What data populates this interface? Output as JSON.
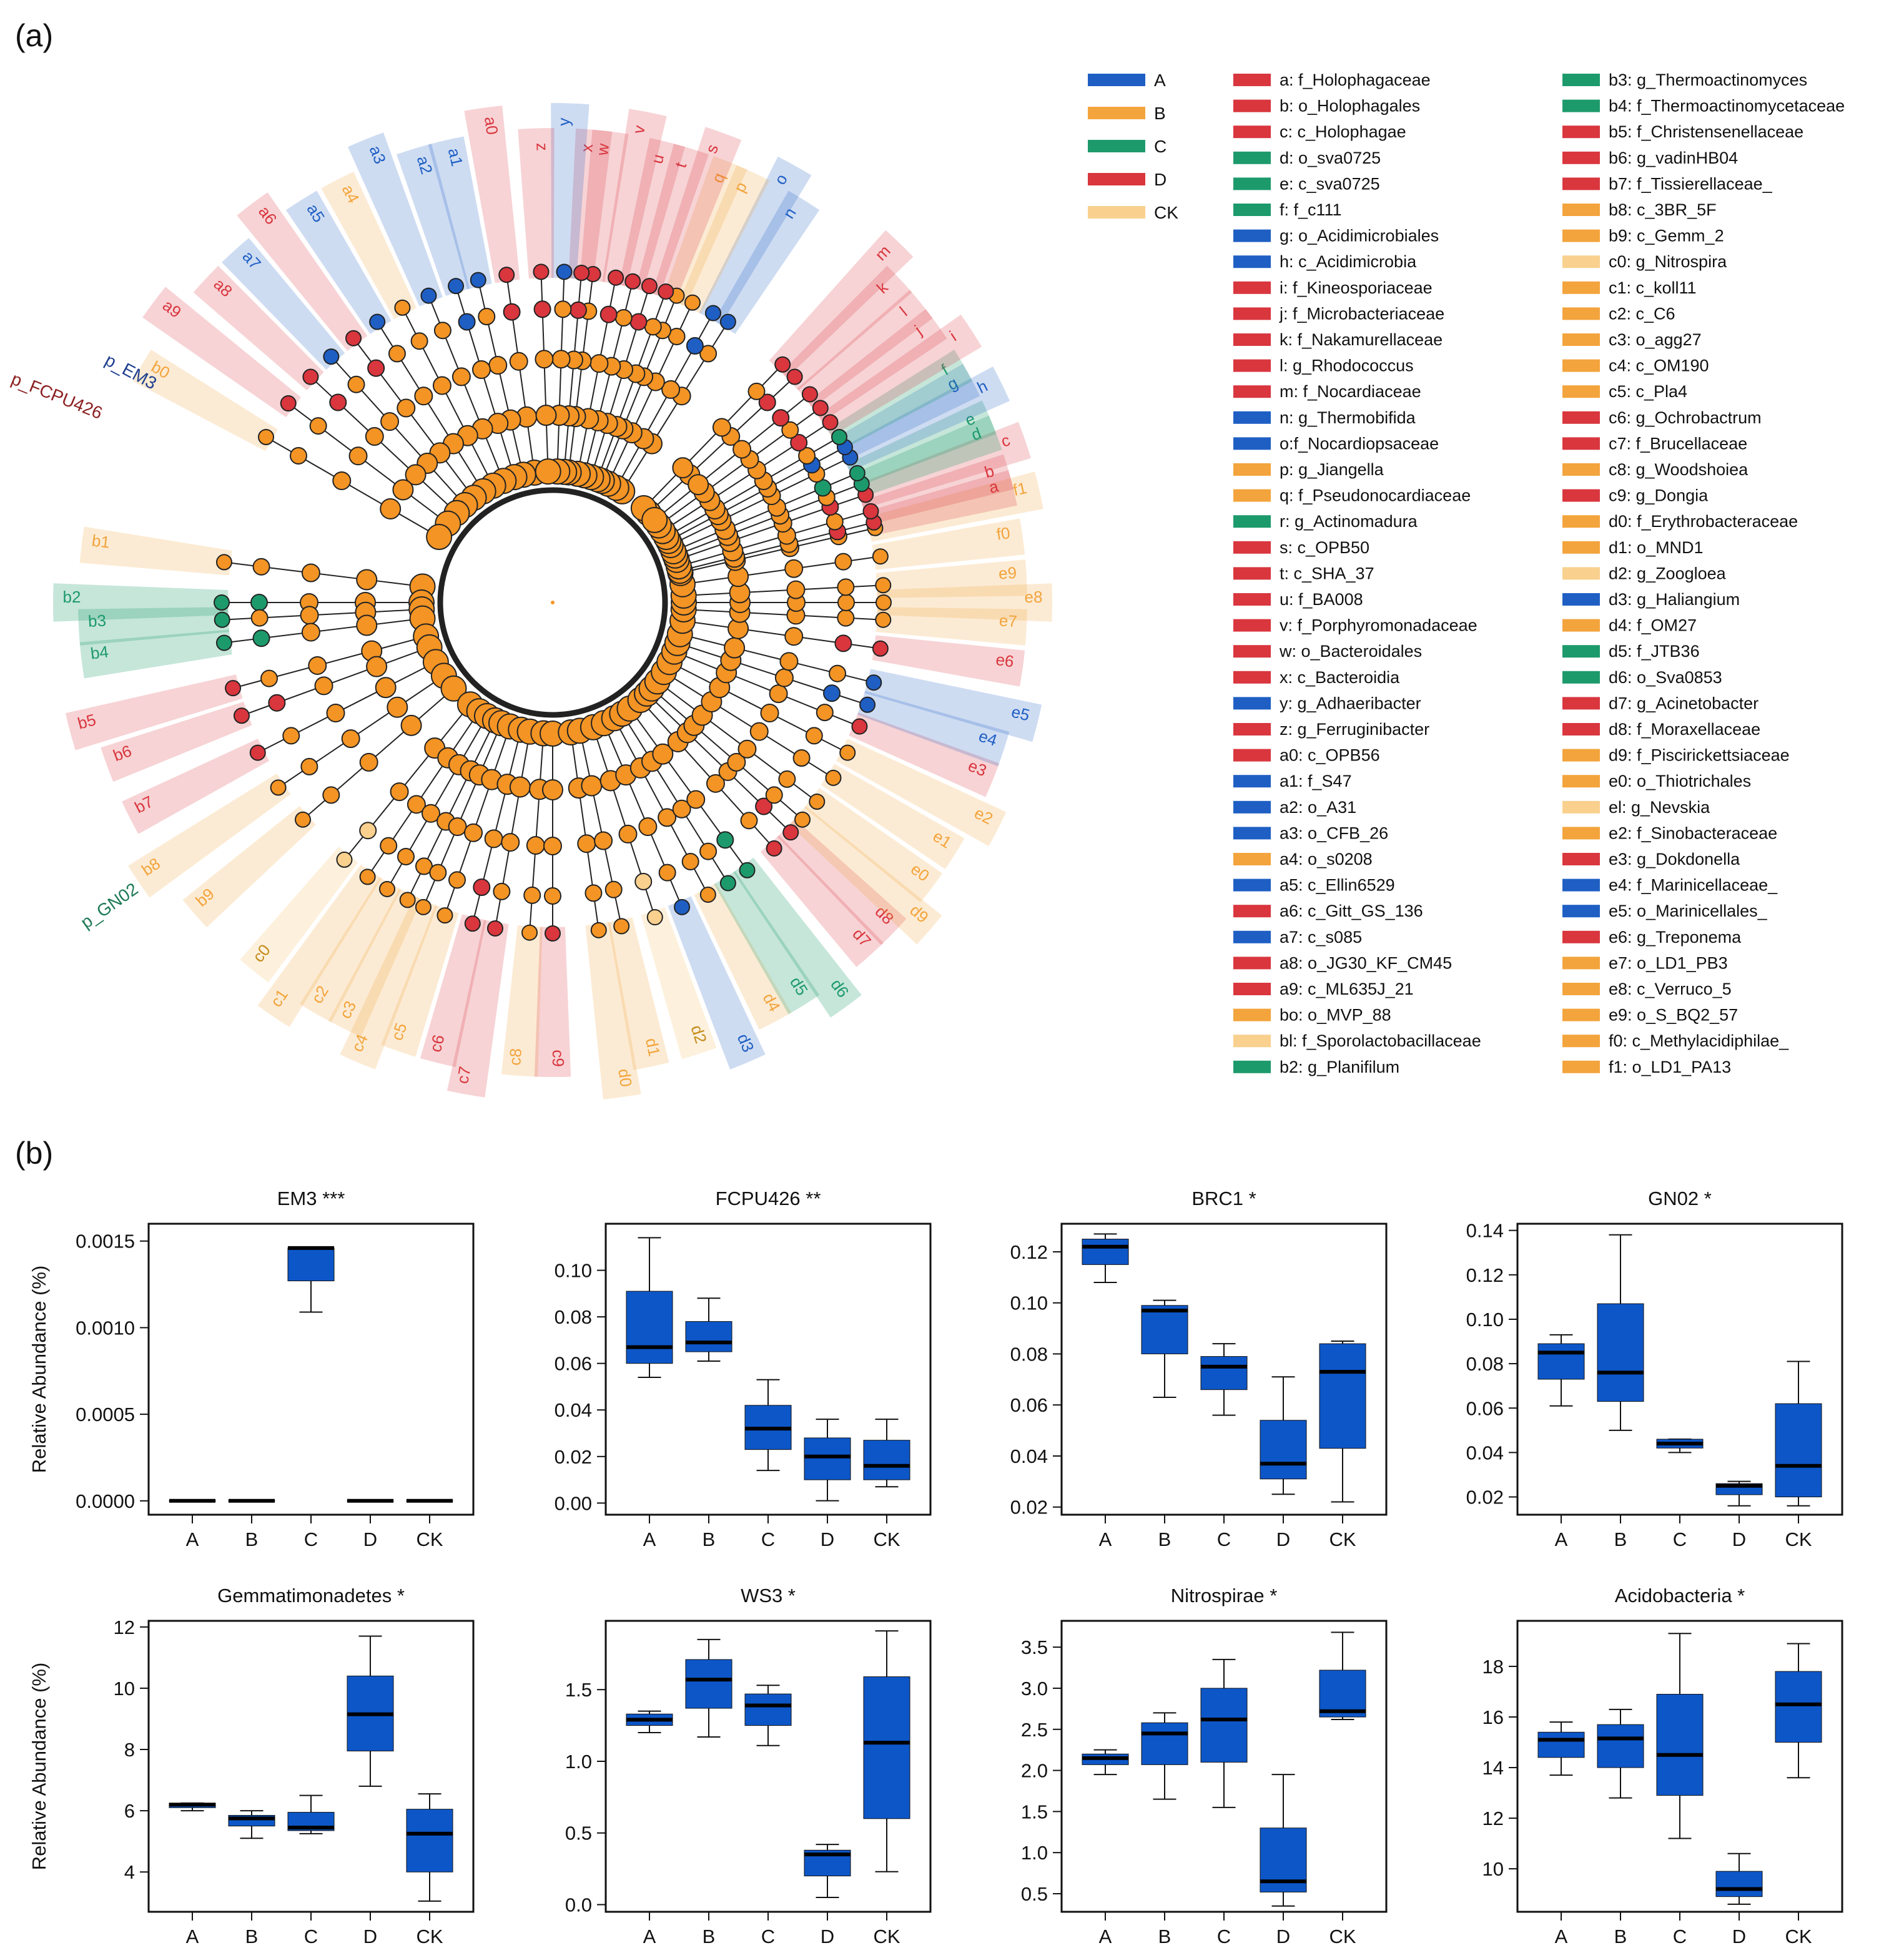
{
  "panel_a_label": "(a)",
  "panel_b_label": "(b)",
  "colors": {
    "A": "#1f5fc4",
    "B": "#f3a43c",
    "C": "#1d9a6c",
    "D": "#d9363e",
    "CK": "#f9d08e",
    "box": "#0d56c8",
    "node": "#f39424",
    "edge": "#222222"
  },
  "cladogram": {
    "legend_groups": [
      {
        "label": "A",
        "color": "#1f5fc4"
      },
      {
        "label": "B",
        "color": "#f3a43c"
      },
      {
        "label": "C",
        "color": "#1d9a6c"
      },
      {
        "label": "D",
        "color": "#d9363e"
      },
      {
        "label": "CK",
        "color": "#f9d08e"
      }
    ],
    "outer_labels": [
      "p_EM3",
      "p_FCPU426",
      "p_GN02"
    ],
    "taxa_col1": [
      {
        "label": "a: f_Holophagaceae",
        "group": "D"
      },
      {
        "label": "b: o_Holophagales",
        "group": "D"
      },
      {
        "label": "c: c_Holophagae",
        "group": "D"
      },
      {
        "label": "d: o_sva0725",
        "group": "C"
      },
      {
        "label": "e: c_sva0725",
        "group": "C"
      },
      {
        "label": "f: f_c111",
        "group": "C"
      },
      {
        "label": "g: o_Acidimicrobiales",
        "group": "A"
      },
      {
        "label": "h: c_Acidimicrobia",
        "group": "A"
      },
      {
        "label": "i: f_Kineosporiaceae",
        "group": "D"
      },
      {
        "label": "j: f_Microbacteriaceae",
        "group": "D"
      },
      {
        "label": "k: f_Nakamurellaceae",
        "group": "D"
      },
      {
        "label": "l: g_Rhodococcus",
        "group": "D"
      },
      {
        "label": "m: f_Nocardiaceae",
        "group": "D"
      },
      {
        "label": "n: g_Thermobifida",
        "group": "A"
      },
      {
        "label": "o:f_Nocardiopsaceae",
        "group": "A"
      },
      {
        "label": "p: g_Jiangella",
        "group": "B"
      },
      {
        "label": "q: f_Pseudonocardiaceae",
        "group": "B"
      },
      {
        "label": "r: g_Actinomadura",
        "group": "C"
      },
      {
        "label": "s: c_OPB50",
        "group": "D"
      },
      {
        "label": "t: c_SHA_37",
        "group": "D"
      },
      {
        "label": "u: f_BA008",
        "group": "D"
      },
      {
        "label": "v: f_Porphyromonadaceae",
        "group": "D"
      },
      {
        "label": "w: o_Bacteroidales",
        "group": "D"
      },
      {
        "label": "x: c_Bacteroidia",
        "group": "D"
      },
      {
        "label": "y: g_Adhaeribacter",
        "group": "A"
      },
      {
        "label": "z: g_Ferruginibacter",
        "group": "D"
      },
      {
        "label": "a0: c_OPB56",
        "group": "D"
      },
      {
        "label": "a1: f_S47",
        "group": "A"
      },
      {
        "label": "a2: o_A31",
        "group": "A"
      },
      {
        "label": "a3: o_CFB_26",
        "group": "A"
      },
      {
        "label": "a4: o_s0208",
        "group": "B"
      },
      {
        "label": "a5: c_Ellin6529",
        "group": "A"
      },
      {
        "label": "a6: c_Gitt_GS_136",
        "group": "D"
      },
      {
        "label": "a7: c_s085",
        "group": "A"
      },
      {
        "label": "a8: o_JG30_KF_CM45",
        "group": "D"
      },
      {
        "label": "a9: c_ML635J_21",
        "group": "D"
      },
      {
        "label": "bo: o_MVP_88",
        "group": "B"
      },
      {
        "label": "bl: f_Sporolactobacillaceae",
        "group": "CK"
      },
      {
        "label": "b2: g_Planifilum",
        "group": "C"
      }
    ],
    "taxa_col2": [
      {
        "label": "b3: g_Thermoactinomyces",
        "group": "C"
      },
      {
        "label": "b4: f_Thermoactinomycetaceae",
        "group": "C"
      },
      {
        "label": "b5: f_Christensenellaceae",
        "group": "D"
      },
      {
        "label": "b6: g_vadinHB04",
        "group": "D"
      },
      {
        "label": "b7: f_Tissierellaceae_",
        "group": "D"
      },
      {
        "label": "b8: c_3BR_5F",
        "group": "B"
      },
      {
        "label": "b9: c_Gemm_2",
        "group": "B"
      },
      {
        "label": "c0: g_Nitrospira",
        "group": "CK"
      },
      {
        "label": "c1: c_koll11",
        "group": "B"
      },
      {
        "label": "c2: c_C6",
        "group": "B"
      },
      {
        "label": "c3: o_agg27",
        "group": "B"
      },
      {
        "label": "c4: c_OM190",
        "group": "B"
      },
      {
        "label": "c5: c_Pla4",
        "group": "B"
      },
      {
        "label": "c6: g_Ochrobactrum",
        "group": "D"
      },
      {
        "label": "c7: f_Brucellaceae",
        "group": "D"
      },
      {
        "label": "c8: g_Woodshoiea",
        "group": "B"
      },
      {
        "label": "c9: g_Dongia",
        "group": "D"
      },
      {
        "label": "d0: f_Erythrobacteraceae",
        "group": "B"
      },
      {
        "label": "d1: o_MND1",
        "group": "B"
      },
      {
        "label": "d2: g_Zoogloea",
        "group": "CK"
      },
      {
        "label": "d3: g_Haliangium",
        "group": "A"
      },
      {
        "label": "d4: f_OM27",
        "group": "B"
      },
      {
        "label": "d5: f_JTB36",
        "group": "C"
      },
      {
        "label": "d6: o_Sva0853",
        "group": "C"
      },
      {
        "label": "d7: g_Acinetobacter",
        "group": "D"
      },
      {
        "label": "d8: f_Moraxellaceae",
        "group": "D"
      },
      {
        "label": "d9: f_Piscirickettsiaceae",
        "group": "B"
      },
      {
        "label": "e0: o_Thiotrichales",
        "group": "B"
      },
      {
        "label": "el: g_Nevskia",
        "group": "CK"
      },
      {
        "label": "e2: f_Sinobacteraceae",
        "group": "B"
      },
      {
        "label": "e3: g_Dokdonella",
        "group": "D"
      },
      {
        "label": "e4: f_Marinicellaceae_",
        "group": "A"
      },
      {
        "label": "e5: o_Marinicellales_",
        "group": "A"
      },
      {
        "label": "e6: g_Treponema",
        "group": "D"
      },
      {
        "label": "e7: o_LD1_PB3",
        "group": "B"
      },
      {
        "label": "e8: c_Verruco_5",
        "group": "B"
      },
      {
        "label": "e9: o_S_BQ2_57",
        "group": "B"
      },
      {
        "label": "f0: c_Methylacidiphilae_",
        "group": "B"
      },
      {
        "label": "f1: o_LD1_PA13",
        "group": "B"
      }
    ]
  },
  "chart_data": [
    {
      "type": "box",
      "title": "EM3 ***",
      "ylabel": "Relative Abundance (%)",
      "categories": [
        "A",
        "B",
        "C",
        "D",
        "CK"
      ],
      "ylim": [
        -8e-05,
        0.0016
      ],
      "ticks": [
        0,
        0.0005,
        0.001,
        0.0015
      ],
      "tick_labels": [
        "0.0000",
        "0.0005",
        "0.0010",
        "0.0015"
      ],
      "boxes": [
        {
          "min": 0,
          "q1": 0,
          "median": 0,
          "q3": 0,
          "max": 0
        },
        {
          "min": 0,
          "q1": 0,
          "median": 0,
          "q3": 0,
          "max": 0
        },
        {
          "min": 0.00109,
          "q1": 0.00127,
          "median": 0.00146,
          "q3": 0.00146,
          "max": 0.00146
        },
        {
          "min": 0,
          "q1": 0,
          "median": 0,
          "q3": 0,
          "max": 0
        },
        {
          "min": 0,
          "q1": 0,
          "median": 0,
          "q3": 0,
          "max": 0
        }
      ]
    },
    {
      "type": "box",
      "title": "FCPU426 **",
      "ylabel": "",
      "categories": [
        "A",
        "B",
        "C",
        "D",
        "CK"
      ],
      "ylim": [
        -0.005,
        0.12
      ],
      "ticks": [
        0,
        0.02,
        0.04,
        0.06,
        0.08,
        0.1
      ],
      "tick_labels": [
        "0.00",
        "0.02",
        "0.04",
        "0.06",
        "0.08",
        "0.10"
      ],
      "boxes": [
        {
          "min": 0.054,
          "q1": 0.06,
          "median": 0.067,
          "q3": 0.091,
          "max": 0.114
        },
        {
          "min": 0.061,
          "q1": 0.065,
          "median": 0.069,
          "q3": 0.078,
          "max": 0.088
        },
        {
          "min": 0.014,
          "q1": 0.023,
          "median": 0.032,
          "q3": 0.042,
          "max": 0.053
        },
        {
          "min": 0.001,
          "q1": 0.01,
          "median": 0.02,
          "q3": 0.028,
          "max": 0.036
        },
        {
          "min": 0.007,
          "q1": 0.01,
          "median": 0.016,
          "q3": 0.027,
          "max": 0.036
        }
      ]
    },
    {
      "type": "box",
      "title": "BRC1 *",
      "ylabel": "",
      "categories": [
        "A",
        "B",
        "C",
        "D",
        "CK"
      ],
      "ylim": [
        0.017,
        0.131
      ],
      "ticks": [
        0.02,
        0.04,
        0.06,
        0.08,
        0.1,
        0.12
      ],
      "tick_labels": [
        "0.02",
        "0.04",
        "0.06",
        "0.08",
        "0.10",
        "0.12"
      ],
      "boxes": [
        {
          "min": 0.108,
          "q1": 0.115,
          "median": 0.122,
          "q3": 0.125,
          "max": 0.127
        },
        {
          "min": 0.063,
          "q1": 0.08,
          "median": 0.097,
          "q3": 0.099,
          "max": 0.101
        },
        {
          "min": 0.056,
          "q1": 0.066,
          "median": 0.075,
          "q3": 0.079,
          "max": 0.084
        },
        {
          "min": 0.025,
          "q1": 0.031,
          "median": 0.037,
          "q3": 0.054,
          "max": 0.071
        },
        {
          "min": 0.022,
          "q1": 0.043,
          "median": 0.073,
          "q3": 0.084,
          "max": 0.085
        }
      ]
    },
    {
      "type": "box",
      "title": "GN02 *",
      "ylabel": "",
      "categories": [
        "A",
        "B",
        "C",
        "D",
        "CK"
      ],
      "ylim": [
        0.012,
        0.143
      ],
      "ticks": [
        0.02,
        0.04,
        0.06,
        0.08,
        0.1,
        0.12,
        0.14
      ],
      "tick_labels": [
        "0.02",
        "0.04",
        "0.06",
        "0.08",
        "0.10",
        "0.12",
        "0.14"
      ],
      "boxes": [
        {
          "min": 0.061,
          "q1": 0.073,
          "median": 0.085,
          "q3": 0.089,
          "max": 0.093
        },
        {
          "min": 0.05,
          "q1": 0.063,
          "median": 0.076,
          "q3": 0.107,
          "max": 0.138
        },
        {
          "min": 0.04,
          "q1": 0.042,
          "median": 0.044,
          "q3": 0.046,
          "max": 0.046
        },
        {
          "min": 0.016,
          "q1": 0.021,
          "median": 0.025,
          "q3": 0.026,
          "max": 0.027
        },
        {
          "min": 0.016,
          "q1": 0.02,
          "median": 0.034,
          "q3": 0.062,
          "max": 0.081
        }
      ]
    },
    {
      "type": "box",
      "title": "Gemmatimonadetes *",
      "ylabel": "Relative Abundance (%)",
      "categories": [
        "A",
        "B",
        "C",
        "D",
        "CK"
      ],
      "ylim": [
        2.7,
        12.2
      ],
      "ticks": [
        4,
        6,
        8,
        10,
        12
      ],
      "tick_labels": [
        "4",
        "6",
        "8",
        "10",
        "12"
      ],
      "boxes": [
        {
          "min": 6.0,
          "q1": 6.1,
          "median": 6.2,
          "q3": 6.25,
          "max": 6.25
        },
        {
          "min": 5.1,
          "q1": 5.5,
          "median": 5.75,
          "q3": 5.85,
          "max": 6.0
        },
        {
          "min": 5.25,
          "q1": 5.35,
          "median": 5.45,
          "q3": 5.95,
          "max": 6.5
        },
        {
          "min": 6.8,
          "q1": 7.95,
          "median": 9.15,
          "q3": 10.4,
          "max": 11.7
        },
        {
          "min": 3.05,
          "q1": 4.0,
          "median": 5.25,
          "q3": 6.05,
          "max": 6.55
        }
      ]
    },
    {
      "type": "box",
      "title": "WS3 *",
      "ylabel": "",
      "categories": [
        "A",
        "B",
        "C",
        "D",
        "CK"
      ],
      "ylim": [
        -0.05,
        1.98
      ],
      "ticks": [
        0,
        0.5,
        1,
        1.5
      ],
      "tick_labels": [
        "0.0",
        "0.5",
        "1.0",
        "1.5"
      ],
      "boxes": [
        {
          "min": 1.2,
          "q1": 1.25,
          "median": 1.29,
          "q3": 1.33,
          "max": 1.35
        },
        {
          "min": 1.17,
          "q1": 1.37,
          "median": 1.57,
          "q3": 1.71,
          "max": 1.85
        },
        {
          "min": 1.11,
          "q1": 1.25,
          "median": 1.39,
          "q3": 1.47,
          "max": 1.53
        },
        {
          "min": 0.05,
          "q1": 0.2,
          "median": 0.35,
          "q3": 0.38,
          "max": 0.42
        },
        {
          "min": 0.23,
          "q1": 0.6,
          "median": 1.13,
          "q3": 1.59,
          "max": 1.91
        }
      ]
    },
    {
      "type": "box",
      "title": "Nitrospirae *",
      "ylabel": "",
      "categories": [
        "A",
        "B",
        "C",
        "D",
        "CK"
      ],
      "ylim": [
        0.28,
        3.82
      ],
      "ticks": [
        0.5,
        1,
        1.5,
        2,
        2.5,
        3,
        3.5
      ],
      "tick_labels": [
        "0.5",
        "1.0",
        "1.5",
        "2.0",
        "2.5",
        "3.0",
        "3.5"
      ],
      "boxes": [
        {
          "min": 1.95,
          "q1": 2.07,
          "median": 2.15,
          "q3": 2.2,
          "max": 2.25
        },
        {
          "min": 1.65,
          "q1": 2.07,
          "median": 2.45,
          "q3": 2.58,
          "max": 2.7
        },
        {
          "min": 1.55,
          "q1": 2.1,
          "median": 2.62,
          "q3": 3.0,
          "max": 3.35
        },
        {
          "min": 0.35,
          "q1": 0.52,
          "median": 0.65,
          "q3": 1.3,
          "max": 1.95
        },
        {
          "min": 2.62,
          "q1": 2.65,
          "median": 2.72,
          "q3": 3.22,
          "max": 3.68
        }
      ]
    },
    {
      "type": "box",
      "title": "Acidobacteria *",
      "ylabel": "",
      "categories": [
        "A",
        "B",
        "C",
        "D",
        "CK"
      ],
      "ylim": [
        8.3,
        19.8
      ],
      "ticks": [
        10,
        12,
        14,
        16,
        18
      ],
      "tick_labels": [
        "10",
        "12",
        "14",
        "16",
        "18"
      ],
      "boxes": [
        {
          "min": 13.7,
          "q1": 14.4,
          "median": 15.1,
          "q3": 15.4,
          "max": 15.8
        },
        {
          "min": 12.8,
          "q1": 14.0,
          "median": 15.15,
          "q3": 15.7,
          "max": 16.3
        },
        {
          "min": 11.2,
          "q1": 12.9,
          "median": 14.5,
          "q3": 16.9,
          "max": 19.3
        },
        {
          "min": 8.6,
          "q1": 8.9,
          "median": 9.2,
          "q3": 9.9,
          "max": 10.6
        },
        {
          "min": 13.6,
          "q1": 15.0,
          "median": 16.5,
          "q3": 17.8,
          "max": 18.9
        }
      ]
    }
  ]
}
